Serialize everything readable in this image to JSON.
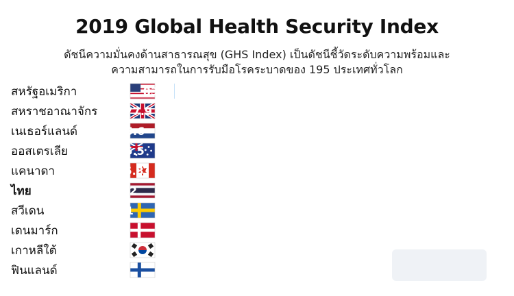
{
  "chart_data": {
    "type": "bar",
    "orientation": "horizontal",
    "title": "2019 Global Health Security Index",
    "subtitle_lines": [
      "ดัชนีความมั่นคงด้านสาธารณสุข (GHS Index) เป็นดัชนีชี้วัดระดับความพร้อมและ",
      "ความสามารถในการรับมือโรคระบาดของ 195 ประเทศทั่วโลก"
    ],
    "categories": [
      "สหรัฐอเมริกา",
      "สหราชอาณาจักร",
      "เนเธอร์แลนด์",
      "ออสเตรเลีย",
      "แคนาดา",
      "ไทย",
      "สวีเดน",
      "เดนมาร์ก",
      "เกาหลีใต้",
      "ฟินแลนด์"
    ],
    "values": [
      83.5,
      77.9,
      75.6,
      75.5,
      75.3,
      73.2,
      72.1,
      70.4,
      70.2,
      68.7
    ],
    "value_labels": [
      "83.5",
      "77.9",
      "75.6",
      "75.5",
      "75.3",
      "73.2",
      "72.1",
      "70.4",
      "70.2",
      "68.7"
    ],
    "flags": [
      "us-flag",
      "uk-flag",
      "netherlands-flag",
      "australia-flag",
      "canada-flag",
      "thailand-flag",
      "sweden-flag",
      "denmark-flag",
      "south-korea-flag",
      "finland-flag"
    ],
    "highlight_category": "ไทย",
    "colors": {
      "bar": "#3399e6",
      "highlight": "#aee03c",
      "bar_edge": "#2a7fc4"
    },
    "grid": false,
    "legend": "none"
  }
}
